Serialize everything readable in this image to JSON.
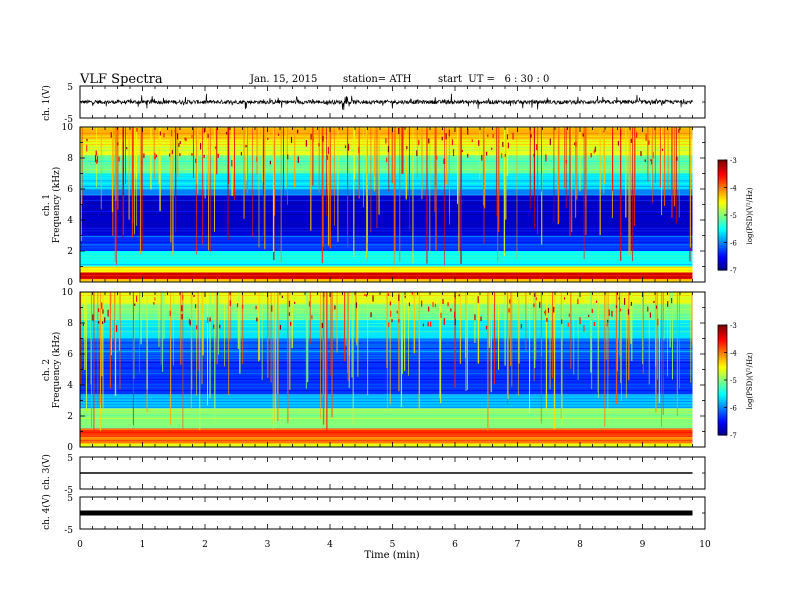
{
  "header": {
    "title": "VLF Spectra",
    "date": "Jan. 15, 2015",
    "station": "station= ATH",
    "start": "start  UT =   6 : 30 : 0"
  },
  "chart_data": [
    {
      "type": "line",
      "panel": "ch1_waveform",
      "ylabel": "ch. 1(V)",
      "ylim": [
        -5,
        5
      ],
      "yticks": [
        "5",
        "-5"
      ],
      "xlim": [
        0,
        10
      ],
      "baseline": 0,
      "series": [
        {
          "values": [
            0.0,
            0.3,
            -0.4,
            0.2,
            -0.1,
            0.5,
            -0.3,
            0.1
          ]
        }
      ],
      "color": "#000000"
    },
    {
      "type": "heatmap",
      "panel": "ch1_spectrogram",
      "ylabel_line1": "ch. 1",
      "ylabel_line2": "Frequency  (kHz)",
      "ylim": [
        0,
        10
      ],
      "yticks": [
        "0",
        "2",
        "4",
        "6",
        "8",
        "10"
      ],
      "xlim": [
        0,
        10
      ],
      "data_end_time_min": 9.8,
      "colorbar": {
        "label": "log(PSD)(V²/Hz)",
        "range": [
          -7,
          -3
        ],
        "ticks": [
          "-3",
          "-4",
          "-5",
          "-6",
          "-7"
        ]
      },
      "levels": [
        {
          "freq_khz": [
            0,
            0.2
          ],
          "log_psd": -4.2
        },
        {
          "freq_khz": [
            0.2,
            0.6
          ],
          "log_psd": -3.3
        },
        {
          "freq_khz": [
            0.6,
            1.0
          ],
          "log_psd": -4.5
        },
        {
          "freq_khz": [
            1.0,
            2.0
          ],
          "log_psd": -5.5
        },
        {
          "freq_khz": [
            2.0,
            3.0
          ],
          "log_psd": -6.3
        },
        {
          "freq_khz": [
            3.0,
            5.6
          ],
          "log_psd": -6.7
        },
        {
          "freq_khz": [
            5.6,
            6.0
          ],
          "log_psd": -6.0
        },
        {
          "freq_khz": [
            6.0,
            7.0
          ],
          "log_psd": -5.6
        },
        {
          "freq_khz": [
            7.0,
            8.2
          ],
          "log_psd": -5.1
        },
        {
          "freq_khz": [
            8.2,
            9.2
          ],
          "log_psd": -4.6
        },
        {
          "freq_khz": [
            9.2,
            10.0
          ],
          "log_psd": -4.2
        }
      ]
    },
    {
      "type": "heatmap",
      "panel": "ch2_spectrogram",
      "ylabel_line1": "ch. 2",
      "ylabel_line2": "Frequency  (kHz)",
      "ylim": [
        0,
        10
      ],
      "yticks": [
        "0",
        "2",
        "4",
        "6",
        "8",
        "10"
      ],
      "xlim": [
        0,
        10
      ],
      "data_end_time_min": 9.8,
      "colorbar": {
        "label": "log(PSD)(V²/Hz)",
        "range": [
          -7,
          -3
        ],
        "ticks": [
          "-3",
          "-4",
          "-5",
          "-6",
          "-7"
        ]
      },
      "levels": [
        {
          "freq_khz": [
            0,
            0.2
          ],
          "log_psd": -4.6
        },
        {
          "freq_khz": [
            0.2,
            0.6
          ],
          "log_psd": -4.0
        },
        {
          "freq_khz": [
            0.6,
            1.2
          ],
          "log_psd": -3.7
        },
        {
          "freq_khz": [
            1.2,
            2.5
          ],
          "log_psd": -5.0
        },
        {
          "freq_khz": [
            2.5,
            3.4
          ],
          "log_psd": -5.7
        },
        {
          "freq_khz": [
            3.4,
            5.6
          ],
          "log_psd": -6.3
        },
        {
          "freq_khz": [
            5.6,
            7.0
          ],
          "log_psd": -6.1
        },
        {
          "freq_khz": [
            7.0,
            8.2
          ],
          "log_psd": -5.6
        },
        {
          "freq_khz": [
            8.2,
            9.2
          ],
          "log_psd": -5.0
        },
        {
          "freq_khz": [
            9.2,
            10.0
          ],
          "log_psd": -4.6
        }
      ]
    },
    {
      "type": "line",
      "panel": "ch3_waveform",
      "ylabel": "ch. 3(V)",
      "ylim": [
        -5,
        5
      ],
      "yticks": [
        "5",
        "-5"
      ],
      "xlim": [
        0,
        10
      ],
      "baseline": 0,
      "color": "#000000"
    },
    {
      "type": "line",
      "panel": "ch4_waveform",
      "ylabel": "ch. 4(V)",
      "ylim": [
        -5,
        5
      ],
      "yticks": [
        "5",
        "-5"
      ],
      "xlim": [
        0,
        10
      ],
      "baseline": 0,
      "color": "#000000"
    }
  ],
  "xaxis": {
    "label": "Time  (min)",
    "ticks": [
      "0",
      "1",
      "2",
      "3",
      "4",
      "5",
      "6",
      "7",
      "8",
      "9",
      "10"
    ]
  }
}
